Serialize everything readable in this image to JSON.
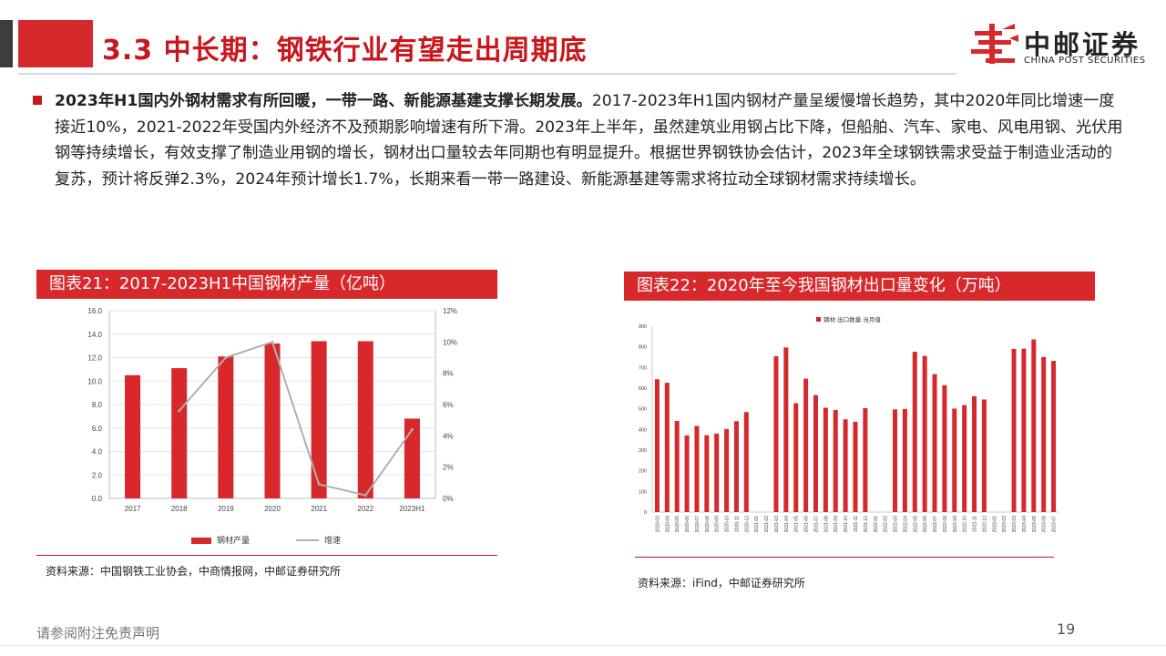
{
  "header": {
    "title": "3.3 中长期：钢铁行业有望走出周期底",
    "logo_cn": "中邮证券",
    "logo_en": "CHINA POST SECURITIES"
  },
  "paragraph": {
    "lead": "2023年H1国内外钢材需求有所回暖，一带一路、新能源基建支撑长期发展。",
    "rest": "2017-2023年H1国内钢材产量呈缓慢增长趋势，其中2020年同比增速一度接近10%，2021-2022年受国内外经济不及预期影响增速有所下滑。2023年上半年，虽然建筑业用钢占比下降，但船舶、汽车、家电、风电用钢、光伏用钢等持续增长，有效支撑了制造业用钢的增长，钢材出口量较去年同期也有明显提升。根据世界钢铁协会估计，2023年全球钢铁需求受益于制造业活动的复苏，预计将反弹2.3%，2024年预计增长1.7%，长期来看一带一路建设、新能源基建等需求将拉动全球钢材需求持续增长。"
  },
  "figure1": {
    "caption": "图表21：2017-2023H1中国钢材产量（亿吨）",
    "source": "资料来源：中国钢铁工业协会，中商情报网，中邮证券研究所"
  },
  "figure2": {
    "caption": "图表22：2020年至今我国钢材出口量变化（万吨）",
    "source": "资料来源：iFind，中邮证券研究所"
  },
  "footer": {
    "disclaimer": "请参阅附注免责声明",
    "page": "19"
  },
  "colors": {
    "accent": "#d7282c",
    "title_red": "#c8171d",
    "line_gray": "#b0b0b0"
  },
  "chart_data": [
    {
      "type": "bar",
      "categories": [
        "2017",
        "2018",
        "2019",
        "2020",
        "2021",
        "2022",
        "2023H1"
      ],
      "series": [
        {
          "name": "钢材产量",
          "type": "bar",
          "axis": "left",
          "values": [
            10.5,
            11.1,
            12.1,
            13.2,
            13.4,
            13.4,
            6.8
          ]
        },
        {
          "name": "增速",
          "type": "line",
          "axis": "right",
          "values": [
            null,
            5.6,
            9.0,
            10.0,
            0.9,
            0.2,
            4.4
          ]
        }
      ],
      "y_left_ticks": [
        "0.0",
        "2.0",
        "4.0",
        "6.0",
        "8.0",
        "10.0",
        "12.0",
        "14.0",
        "16.0"
      ],
      "y_right_ticks": [
        "0%",
        "2%",
        "4%",
        "6%",
        "8%",
        "10%",
        "12%"
      ],
      "ylim_left": [
        0,
        16
      ],
      "ylim_right": [
        0,
        12
      ],
      "legend_position": "bottom"
    },
    {
      "type": "bar",
      "legend": "钢材:出口数量:当月值",
      "legend_position": "top",
      "ylim": [
        0,
        900
      ],
      "y_ticks": [
        "0",
        "100",
        "200",
        "300",
        "400",
        "500",
        "600",
        "700",
        "800",
        "900"
      ],
      "categories": [
        "2020-03",
        "2020-04",
        "2020-05",
        "2020-06",
        "2020-07",
        "2020-08",
        "2020-09",
        "2020-10",
        "2020-11",
        "2020-12",
        "2021-01",
        "2021-02",
        "2021-03",
        "2021-04",
        "2021-05",
        "2021-06",
        "2021-07",
        "2021-08",
        "2021-09",
        "2021-10",
        "2021-11",
        "2021-12",
        "2022-01",
        "2022-02",
        "2022-03",
        "2022-04",
        "2022-05",
        "2022-06",
        "2022-07",
        "2022-08",
        "2022-09",
        "2022-10",
        "2022-11",
        "2022-12",
        "2023-01",
        "2023-02",
        "2023-03",
        "2023-04",
        "2023-05",
        "2023-06",
        "2023-07"
      ],
      "values": [
        643,
        626,
        441,
        371,
        417,
        372,
        380,
        402,
        440,
        484,
        null,
        null,
        754,
        797,
        527,
        646,
        566,
        505,
        494,
        449,
        437,
        503,
        null,
        null,
        497,
        499,
        776,
        756,
        668,
        614,
        501,
        518,
        561,
        545,
        null,
        null,
        790,
        791,
        836,
        751,
        732
      ],
      "x_tick_labels": [
        "2020-03",
        "2020-04",
        "2020-05",
        "2020-06",
        "2020-07",
        "2020-08",
        "2020-09",
        "2020-10",
        "2020-11",
        "2020-12",
        "2021-01",
        "2021-02",
        "2021-03",
        "2021-04",
        "2021-05",
        "2021-06",
        "2021-07",
        "2021-08",
        "2021-09",
        "2021-10",
        "2021-11",
        "2021-12",
        "2022-01",
        "2022-02",
        "2022-03",
        "2022-04",
        "2022-05",
        "2022-06",
        "2022-07",
        "2022-08",
        "2022-09",
        "2022-10",
        "2022-11",
        "2022-12",
        "2023-01",
        "2023-02",
        "2023-03",
        "2023-04",
        "2023-05",
        "2023-06",
        "2023-07"
      ]
    }
  ]
}
